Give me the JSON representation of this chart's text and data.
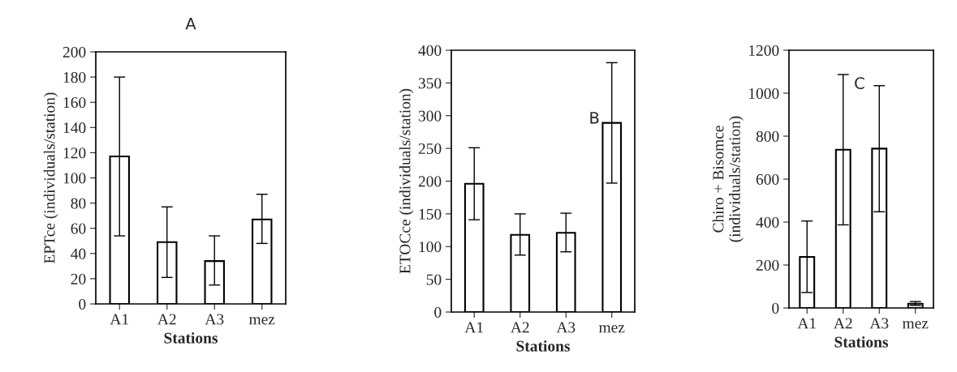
{
  "chart_data": [
    {
      "type": "bar",
      "title": "A",
      "xlabel": "Stations",
      "ylabel": "EPTce (individuals/station)",
      "categories": [
        "A1",
        "A2",
        "A3",
        "mez"
      ],
      "values": [
        117,
        49,
        34,
        67
      ],
      "errors": [
        [
          54,
          180
        ],
        [
          21,
          77
        ],
        [
          15,
          54
        ],
        [
          48,
          87
        ]
      ],
      "color": "#ffffff",
      "ylim": [
        0,
        200
      ],
      "yticks": [
        0,
        20,
        40,
        60,
        80,
        100,
        120,
        140,
        160,
        180,
        200
      ],
      "grid": false,
      "legend": false
    },
    {
      "type": "bar",
      "annotations": [
        "B"
      ],
      "xlabel": "Stations",
      "ylabel": "ETOCce (individuals/station)",
      "categories": [
        "A1",
        "A2",
        "A3",
        "mez"
      ],
      "values": [
        196,
        118,
        121,
        289
      ],
      "errors": [
        [
          141,
          251
        ],
        [
          87,
          150
        ],
        [
          92,
          151
        ],
        [
          197,
          381
        ]
      ],
      "color": "#ffffff",
      "ylim": [
        0,
        400
      ],
      "yticks": [
        0,
        50,
        100,
        150,
        200,
        250,
        300,
        350,
        400
      ],
      "grid": false,
      "legend": false
    },
    {
      "type": "bar",
      "annotations": [
        "C"
      ],
      "xlabel": "Stations",
      "ylabel": "Chiro + Bisomce\n(individuals/station)",
      "categories": [
        "A1",
        "A2",
        "A3",
        "mez"
      ],
      "values": [
        238,
        737,
        742,
        20
      ],
      "errors": [
        [
          72,
          405
        ],
        [
          387,
          1087
        ],
        [
          448,
          1035
        ],
        [
          12,
          30
        ]
      ],
      "color": "#ffffff",
      "ylim": [
        0,
        1200
      ],
      "yticks": [
        0,
        200,
        400,
        600,
        800,
        1000,
        1200
      ],
      "grid": false,
      "legend": false
    }
  ]
}
